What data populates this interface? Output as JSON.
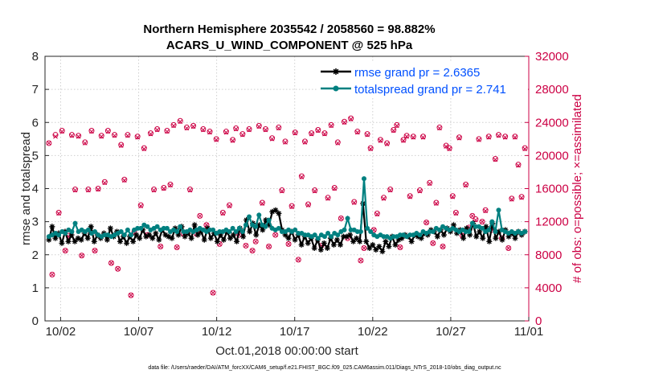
{
  "chart_data": {
    "type": "line",
    "title": [
      "Northern Hemisphere 2035542 / 2058560 = 98.882%",
      "ACARS_U_WIND_COMPONENT @ 525 hPa"
    ],
    "xlabel": "Oct.01,2018 00:00:00 start",
    "ylabel_left": "rmse and totalspread",
    "ylabel_right": "# of obs: o=possible; ×=assimilated",
    "footnote": "data file: /Users/raeder/DAI/ATM_forcXX/CAM6_setup/f.e21.FHIST_BGC.f09_025.CAM6assim.011/Diags_NTrS_2018-10/obs_diag_output.nc",
    "xlim": [
      0.5,
      31.5
    ],
    "xticks": [
      1.5,
      6.5,
      11.5,
      16.5,
      21.5,
      26.5,
      31.5
    ],
    "xtick_labels": [
      "10/02",
      "10/07",
      "10/12",
      "10/17",
      "10/22",
      "10/27",
      "11/01"
    ],
    "ylim_left": [
      0,
      8
    ],
    "yticks_left": [
      0,
      1,
      2,
      3,
      4,
      5,
      6,
      7,
      8
    ],
    "ylim_right": [
      0,
      32000
    ],
    "yticks_right": [
      0,
      4000,
      8000,
      12000,
      16000,
      20000,
      24000,
      28000,
      32000
    ],
    "legend_position": "top-right",
    "series": [
      {
        "name": "rmse grand pr = 2.6365",
        "color": "#000000",
        "marker": "asterisk",
        "values": [
          2.45,
          2.85,
          2.5,
          2.65,
          2.35,
          2.7,
          2.4,
          2.6,
          2.4,
          2.5,
          2.45,
          2.65,
          2.5,
          2.85,
          2.4,
          2.6,
          2.5,
          2.65,
          2.45,
          2.8,
          2.55,
          2.7,
          2.4,
          2.55,
          2.35,
          2.55,
          2.4,
          2.6,
          2.5,
          2.75,
          2.55,
          2.6,
          2.5,
          2.65,
          2.45,
          2.75,
          2.6,
          2.55,
          2.5,
          2.8,
          2.6,
          2.85,
          2.55,
          2.65,
          2.5,
          2.9,
          2.6,
          2.7,
          2.45,
          2.8,
          2.5,
          2.65,
          2.4,
          2.6,
          2.45,
          2.7,
          2.5,
          2.6,
          2.4,
          2.8,
          2.55,
          3.05,
          2.7,
          2.95,
          2.6,
          2.9,
          2.75,
          3.05,
          2.9,
          3.3,
          3.35,
          3.25,
          2.75,
          2.6,
          2.5,
          2.7,
          2.45,
          2.6,
          2.3,
          2.55,
          2.35,
          2.5,
          2.2,
          2.45,
          2.15,
          2.35,
          2.2,
          2.5,
          2.3,
          2.45,
          2.3,
          2.55,
          2.55,
          2.6,
          2.4,
          2.5,
          2.4,
          3.55,
          2.4,
          2.2,
          2.3,
          2.15,
          2.25,
          2.1,
          2.4,
          2.25,
          2.55,
          2.3,
          2.45,
          2.5,
          2.6,
          2.55,
          2.4,
          2.6,
          2.55,
          2.5,
          2.65,
          2.6,
          2.75,
          2.7,
          2.55,
          2.75,
          2.6,
          2.8,
          2.7,
          2.9,
          2.65,
          2.75,
          2.5,
          2.8,
          2.6,
          2.95,
          2.55,
          2.7,
          2.5,
          2.85,
          2.4,
          2.95,
          2.5,
          2.7,
          2.45,
          2.75,
          2.55,
          2.65,
          2.5,
          2.7,
          2.6,
          2.7
        ]
      },
      {
        "name": "totalspread grand pr = 2.741",
        "color": "#008080",
        "marker": "dot",
        "values": [
          2.55,
          2.6,
          2.65,
          2.6,
          2.7,
          2.65,
          2.75,
          2.7,
          2.95,
          2.7,
          2.75,
          2.7,
          2.75,
          2.65,
          2.7,
          2.6,
          2.55,
          2.6,
          2.6,
          2.55,
          2.6,
          2.65,
          2.7,
          2.6,
          2.75,
          2.6,
          2.75,
          2.8,
          2.8,
          2.9,
          2.85,
          2.75,
          2.8,
          2.85,
          2.75,
          2.8,
          2.8,
          2.7,
          2.75,
          2.7,
          2.85,
          2.7,
          2.7,
          2.75,
          2.7,
          2.75,
          2.8,
          2.75,
          2.7,
          2.75,
          2.75,
          2.65,
          2.7,
          2.7,
          2.75,
          2.7,
          2.8,
          2.7,
          2.8,
          2.7,
          2.9,
          3.15,
          2.9,
          2.85,
          3.2,
          2.9,
          2.85,
          3.05,
          2.8,
          2.75,
          2.8,
          2.7,
          2.7,
          2.75,
          2.7,
          2.75,
          2.65,
          2.65,
          2.6,
          2.6,
          2.55,
          2.6,
          2.5,
          2.6,
          2.55,
          2.65,
          2.55,
          2.65,
          2.6,
          2.7,
          2.75,
          3.1,
          2.75,
          2.75,
          2.7,
          2.7,
          4.3,
          2.8,
          2.7,
          2.6,
          2.55,
          2.6,
          2.55,
          2.55,
          2.5,
          2.55,
          2.55,
          2.6,
          2.6,
          2.55,
          2.6,
          2.6,
          2.65,
          2.6,
          2.7,
          2.65,
          2.7,
          2.7,
          2.8,
          2.75,
          2.85,
          2.8,
          2.75,
          2.8,
          2.75,
          2.7,
          2.75,
          2.7,
          2.7,
          2.95,
          2.85,
          2.85,
          2.8,
          2.7,
          2.75,
          3.0,
          2.7,
          3.35,
          2.75,
          2.7,
          2.65,
          2.7,
          2.65,
          2.7,
          2.65,
          2.7
        ]
      },
      {
        "name": "obs possible",
        "color": "#cc0044",
        "marker": "circle",
        "axis": "right",
        "values": [
          21500,
          5600,
          22500,
          13100,
          23000,
          8500,
          10300,
          22500,
          15900,
          22400,
          7900,
          21600,
          15900,
          23000,
          8500,
          16000,
          22400,
          16800,
          23000,
          7000,
          22500,
          6300,
          21300,
          17100,
          22500,
          3100,
          10800,
          22300,
          14000,
          20900,
          10400,
          22700,
          15900,
          23200,
          9000,
          16100,
          23000,
          16500,
          23700,
          8900,
          24200,
          10500,
          23400,
          15900,
          23600,
          10500,
          12700,
          23200,
          11600,
          22900,
          3400,
          22000,
          9300,
          13100,
          22900,
          14000,
          21900,
          23300,
          10400,
          22600,
          9100,
          23200,
          8500,
          9600,
          23600,
          14300,
          23200,
          9000,
          22100,
          10400,
          23400,
          15800,
          21700,
          9300,
          13900,
          22800,
          7400,
          17500,
          21700,
          14100,
          22700,
          15800,
          23100,
          9100,
          22700,
          14900,
          23700,
          16100,
          21600,
          12400,
          24100,
          10000,
          24500,
          14400,
          22900,
          7300,
          8800,
          22600,
          20900,
          11000,
          13000,
          21900,
          14900,
          21500,
          15900,
          23100,
          23700,
          8900,
          21900,
          22400,
          15100,
          22300,
          10500,
          15800,
          22300,
          11900,
          16700,
          9400,
          14300,
          23400,
          9000,
          21200,
          20900,
          15100,
          13100,
          22200,
          10300,
          16500,
          11300,
          12700,
          12300,
          22000,
          12000,
          13400,
          22300,
          11000,
          19600,
          22500,
          10000,
          22300,
          8800,
          14800,
          22300,
          18900,
          15000,
          20900
        ]
      },
      {
        "name": "obs assimilated",
        "color": "#cc0044",
        "marker": "x",
        "axis": "right",
        "values": [
          21500,
          5600,
          22300,
          13000,
          22900,
          8500,
          10200,
          22400,
          15800,
          22300,
          7900,
          21500,
          15800,
          22900,
          8500,
          15900,
          22300,
          16700,
          22900,
          7000,
          22400,
          6300,
          21200,
          17000,
          22400,
          3100,
          10800,
          22200,
          13900,
          20800,
          10400,
          22600,
          15800,
          23100,
          9000,
          16000,
          22900,
          16400,
          23600,
          8900,
          24100,
          10500,
          23300,
          15800,
          23500,
          10500,
          12700,
          23100,
          11600,
          22800,
          3400,
          21900,
          9300,
          13000,
          22800,
          13900,
          21800,
          23200,
          10400,
          22500,
          9100,
          23100,
          8500,
          9600,
          23500,
          14200,
          23100,
          9000,
          22000,
          10400,
          23300,
          15700,
          21600,
          9300,
          13800,
          22700,
          7400,
          17400,
          21600,
          14000,
          22600,
          15700,
          23000,
          9100,
          22600,
          14800,
          23600,
          16000,
          21500,
          12400,
          24000,
          10000,
          24400,
          14300,
          22800,
          7300,
          8800,
          22500,
          20800,
          11000,
          12900,
          21800,
          14800,
          21400,
          15800,
          23000,
          23600,
          8900,
          21800,
          22300,
          15000,
          22200,
          10500,
          15700,
          22200,
          11900,
          16600,
          9400,
          14200,
          23300,
          9000,
          21100,
          20800,
          15000,
          13000,
          22100,
          10300,
          16400,
          11300,
          12700,
          12200,
          21900,
          12000,
          13300,
          22200,
          11000,
          19500,
          22400,
          10000,
          22200,
          8800,
          14700,
          22200,
          18800,
          14900,
          20800
        ]
      }
    ]
  }
}
